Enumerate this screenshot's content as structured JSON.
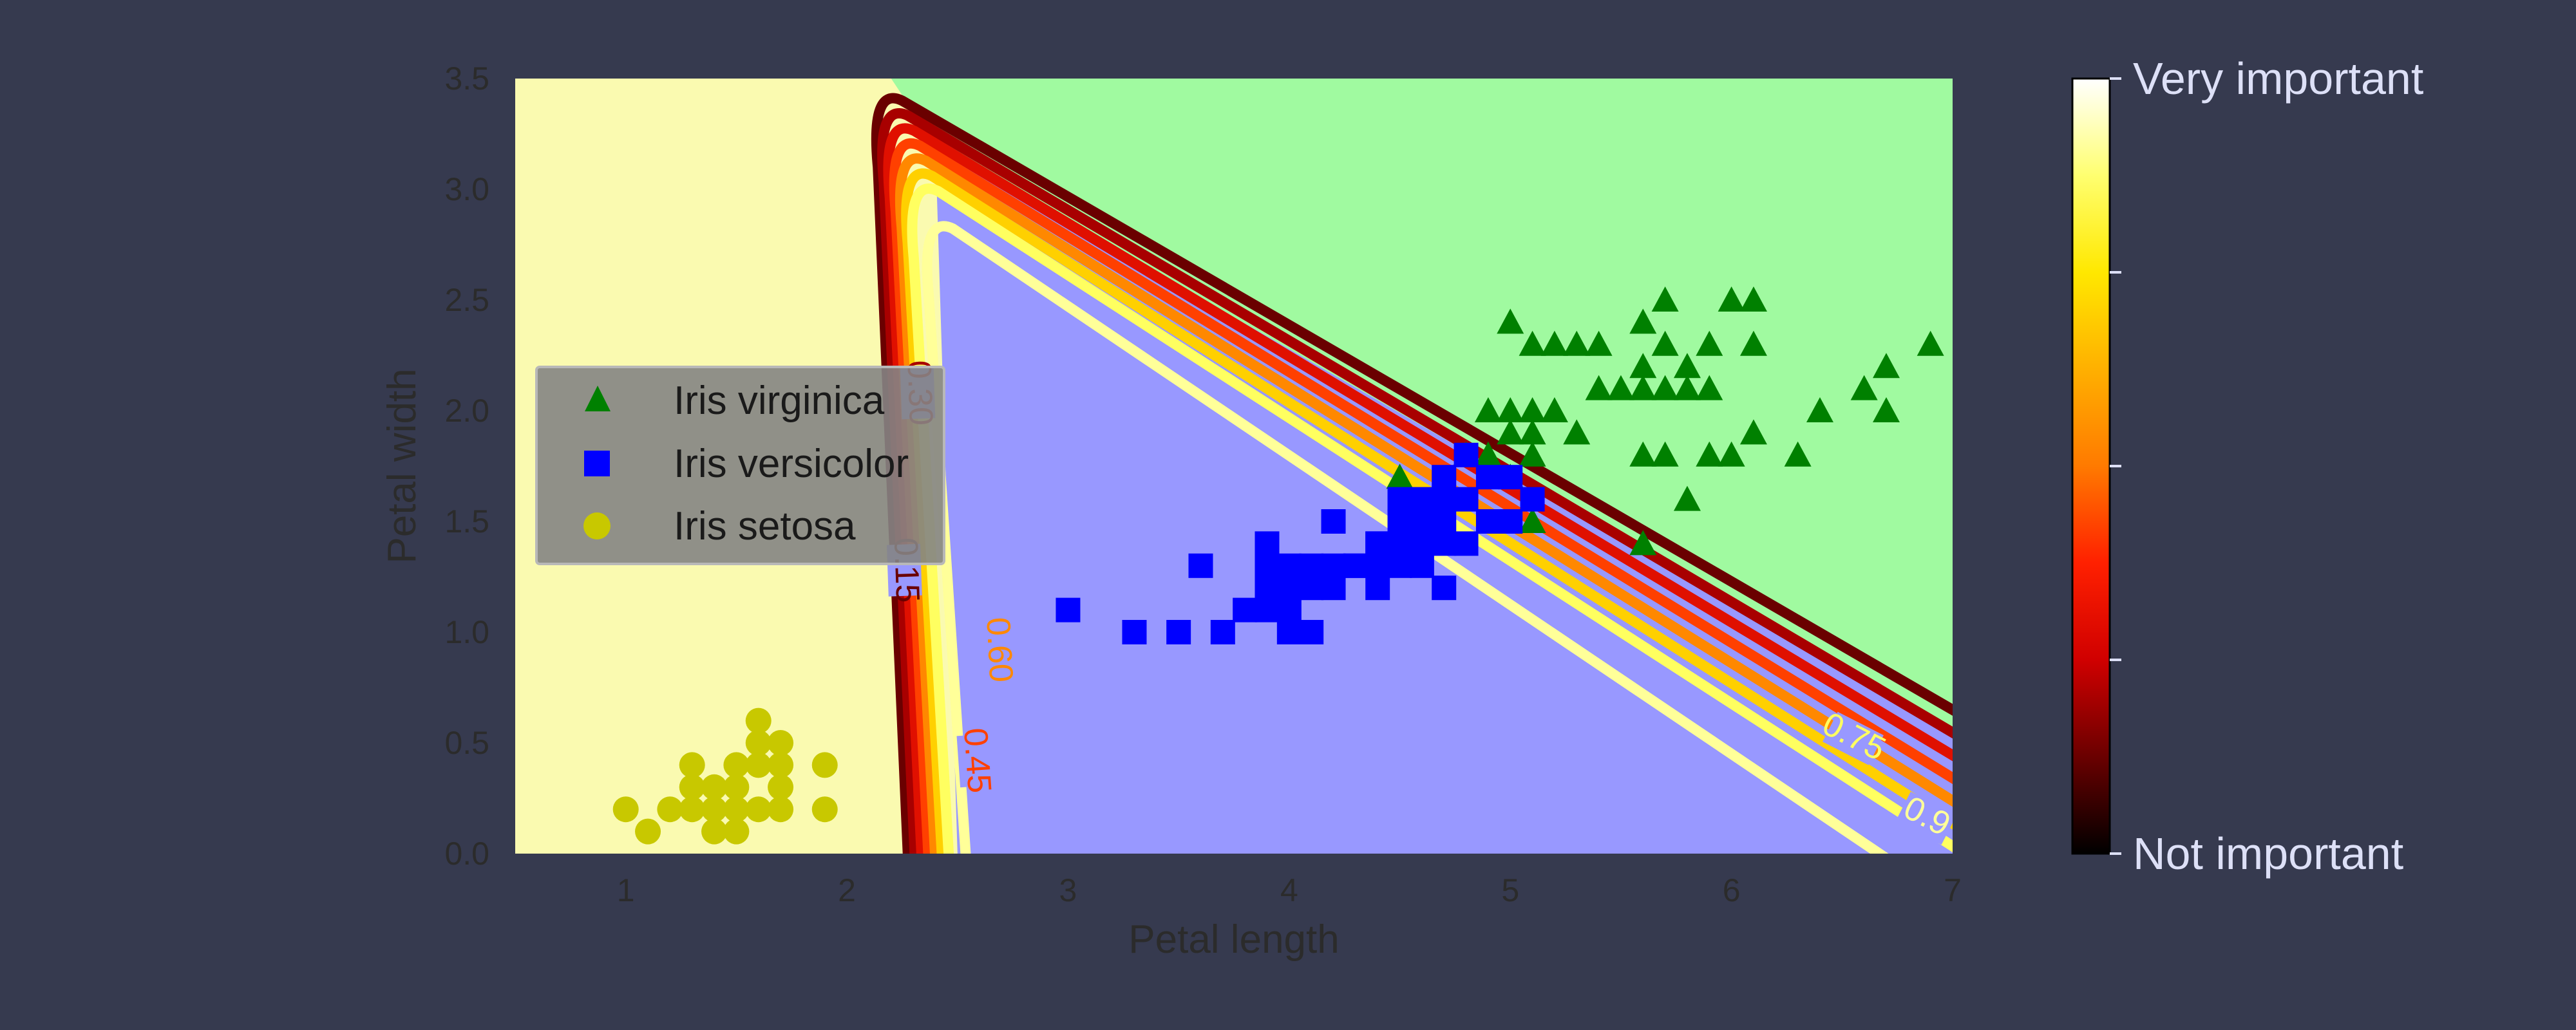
{
  "colors": {
    "page_background": "#363a4f",
    "region_setosa": "#fafab0",
    "region_versicolor": "#9898ff",
    "region_virginica": "#a0faa0",
    "marker_virginica": "#008000",
    "marker_versicolor": "#0000ff",
    "marker_setosa": "#c8c800",
    "axis_text": "#2b2b2b",
    "colorbar_text": "#dde0f7",
    "legend_background": "#848484"
  },
  "chart_data": {
    "type": "scatter",
    "title": "",
    "xlabel": "Petal length",
    "ylabel": "Petal width",
    "xlim": [
      0.5,
      7
    ],
    "ylim": [
      0,
      3.5
    ],
    "xticks": [
      1,
      2,
      3,
      4,
      5,
      6,
      7
    ],
    "yticks": [
      0.0,
      0.5,
      1.0,
      1.5,
      2.0,
      2.5,
      3.0,
      3.5
    ],
    "xtick_labels": [
      "1",
      "2",
      "3",
      "4",
      "5",
      "6",
      "7"
    ],
    "ytick_labels": [
      "0.0",
      "0.5",
      "1.0",
      "1.5",
      "2.0",
      "2.5",
      "3.0",
      "3.5"
    ],
    "grid": false,
    "legend_position": "center-left",
    "decision_regions": [
      {
        "class": "Iris setosa",
        "color": "#fafab0"
      },
      {
        "class": "Iris versicolor",
        "color": "#9898ff"
      },
      {
        "class": "Iris virginica",
        "color": "#a0faa0"
      }
    ],
    "series": [
      {
        "name": "Iris virginica",
        "marker": "triangle",
        "color": "#008000",
        "points": [
          [
            5.0,
            2.4
          ],
          [
            5.1,
            2.3
          ],
          [
            5.2,
            2.3
          ],
          [
            5.3,
            2.3
          ],
          [
            5.4,
            2.3
          ],
          [
            5.6,
            2.4
          ],
          [
            5.7,
            2.5
          ],
          [
            5.6,
            2.2
          ],
          [
            5.7,
            2.3
          ],
          [
            5.8,
            2.2
          ],
          [
            5.9,
            2.3
          ],
          [
            6.0,
            2.5
          ],
          [
            6.1,
            2.5
          ],
          [
            6.1,
            2.3
          ],
          [
            5.5,
            2.1
          ],
          [
            5.6,
            2.1
          ],
          [
            5.7,
            2.1
          ],
          [
            5.8,
            2.1
          ],
          [
            5.9,
            2.1
          ],
          [
            5.4,
            2.1
          ],
          [
            4.9,
            2.0
          ],
          [
            5.0,
            2.0
          ],
          [
            5.1,
            2.0
          ],
          [
            5.2,
            2.0
          ],
          [
            5.0,
            1.9
          ],
          [
            5.1,
            1.9
          ],
          [
            5.3,
            1.9
          ],
          [
            5.6,
            1.8
          ],
          [
            5.7,
            1.8
          ],
          [
            5.9,
            1.8
          ],
          [
            6.0,
            1.8
          ],
          [
            6.1,
            1.9
          ],
          [
            6.3,
            1.8
          ],
          [
            6.4,
            2.0
          ],
          [
            6.6,
            2.1
          ],
          [
            6.7,
            2.2
          ],
          [
            6.7,
            2.0
          ],
          [
            6.9,
            2.3
          ],
          [
            4.8,
            1.8
          ],
          [
            4.9,
            1.8
          ],
          [
            5.1,
            1.8
          ],
          [
            5.8,
            1.6
          ],
          [
            5.0,
            1.7
          ],
          [
            5.1,
            1.5
          ],
          [
            4.5,
            1.7
          ],
          [
            5.6,
            1.4
          ]
        ]
      },
      {
        "name": "Iris versicolor",
        "marker": "square",
        "color": "#0000ff",
        "points": [
          [
            3.0,
            1.1
          ],
          [
            3.3,
            1.0
          ],
          [
            3.5,
            1.0
          ],
          [
            3.7,
            1.0
          ],
          [
            3.9,
            1.1
          ],
          [
            3.8,
            1.1
          ],
          [
            4.0,
            1.0
          ],
          [
            4.1,
            1.0
          ],
          [
            3.9,
            1.2
          ],
          [
            4.0,
            1.2
          ],
          [
            4.2,
            1.2
          ],
          [
            4.4,
            1.2
          ],
          [
            4.7,
            1.2
          ],
          [
            4.0,
            1.3
          ],
          [
            4.1,
            1.3
          ],
          [
            4.2,
            1.3
          ],
          [
            4.3,
            1.3
          ],
          [
            4.4,
            1.3
          ],
          [
            4.5,
            1.3
          ],
          [
            4.6,
            1.3
          ],
          [
            3.6,
            1.3
          ],
          [
            3.9,
            1.4
          ],
          [
            4.4,
            1.4
          ],
          [
            4.5,
            1.4
          ],
          [
            4.6,
            1.4
          ],
          [
            4.7,
            1.4
          ],
          [
            4.8,
            1.4
          ],
          [
            4.2,
            1.5
          ],
          [
            4.5,
            1.5
          ],
          [
            4.6,
            1.5
          ],
          [
            4.7,
            1.5
          ],
          [
            4.9,
            1.5
          ],
          [
            5.0,
            1.5
          ],
          [
            4.8,
            1.6
          ],
          [
            4.5,
            1.6
          ],
          [
            4.7,
            1.6
          ],
          [
            5.1,
            1.6
          ],
          [
            4.8,
            1.8
          ],
          [
            4.9,
            1.7
          ],
          [
            5.0,
            1.7
          ],
          [
            4.7,
            1.7
          ],
          [
            4.6,
            1.6
          ],
          [
            4.4,
            1.4
          ],
          [
            4.3,
            1.3
          ],
          [
            4.1,
            1.2
          ],
          [
            3.9,
            1.3
          ],
          [
            4.0,
            1.1
          ]
        ]
      },
      {
        "name": "Iris setosa",
        "marker": "circle",
        "color": "#c8c800",
        "points": [
          [
            1.0,
            0.2
          ],
          [
            1.1,
            0.1
          ],
          [
            1.2,
            0.2
          ],
          [
            1.3,
            0.2
          ],
          [
            1.4,
            0.2
          ],
          [
            1.5,
            0.2
          ],
          [
            1.6,
            0.2
          ],
          [
            1.7,
            0.2
          ],
          [
            1.9,
            0.2
          ],
          [
            1.3,
            0.3
          ],
          [
            1.4,
            0.3
          ],
          [
            1.5,
            0.3
          ],
          [
            1.7,
            0.3
          ],
          [
            1.3,
            0.4
          ],
          [
            1.5,
            0.4
          ],
          [
            1.6,
            0.4
          ],
          [
            1.7,
            0.4
          ],
          [
            1.9,
            0.4
          ],
          [
            1.6,
            0.5
          ],
          [
            1.7,
            0.5
          ],
          [
            1.6,
            0.6
          ],
          [
            1.4,
            0.1
          ],
          [
            1.5,
            0.1
          ]
        ]
      }
    ],
    "contours": [
      {
        "label": "0.15",
        "color": "#6a0000",
        "offset": 0.0,
        "label_x": 2.26,
        "label_y": 1.28,
        "label_angle": 88
      },
      {
        "label": "0.30",
        "color": "#a80000",
        "offset": 0.2,
        "label_x": 2.32,
        "label_y": 2.08,
        "label_angle": 88
      },
      {
        "label": "",
        "color": "#e01000",
        "offset": 0.4
      },
      {
        "label": "0.45",
        "color": "#ff4000",
        "offset": 0.6,
        "label_x": 2.58,
        "label_y": 0.42,
        "label_angle": 86
      },
      {
        "label": "0.60",
        "color": "#ff8800",
        "offset": 0.8,
        "label_x": 2.68,
        "label_y": 0.92,
        "label_angle": 87
      },
      {
        "label": "",
        "color": "#ffd000",
        "offset": 1.0
      },
      {
        "label": "0.75",
        "color": "#ffff60",
        "offset": 1.2,
        "label_x": 6.55,
        "label_y": 0.52,
        "label_angle": 27
      },
      {
        "label": "0.9",
        "color": "#ffff99",
        "offset": 1.7,
        "label_x": 6.88,
        "label_y": 0.16,
        "label_angle": 27
      }
    ],
    "colorbar": {
      "top_label": "Very important",
      "bottom_label": "Not important",
      "tick_count": 5,
      "colormap": [
        "#000000",
        "#6a0000",
        "#d00000",
        "#ff2000",
        "#ff7a00",
        "#ffb000",
        "#ffe800",
        "#ffff70",
        "#ffffff"
      ]
    },
    "legend": [
      {
        "label": "Iris virginica",
        "marker": "triangle",
        "color": "#008000"
      },
      {
        "label": "Iris versicolor",
        "marker": "square",
        "color": "#0000ff"
      },
      {
        "label": "Iris setosa",
        "marker": "circle",
        "color": "#c8c800"
      }
    ]
  }
}
